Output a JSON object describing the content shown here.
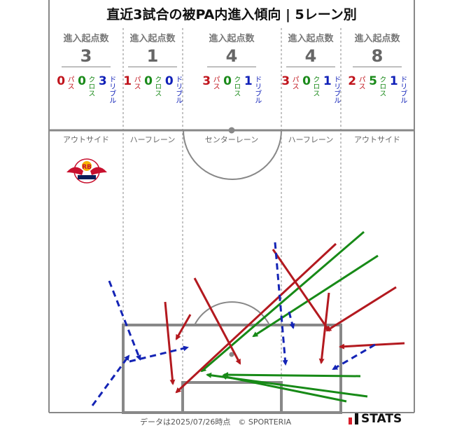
{
  "title": "直近3試合の被PA内進入傾向 | 5レーン別",
  "count_label": "進入起点数",
  "type_labels": {
    "pass": "パス",
    "cross": "クロス",
    "dribble": "ドリブル"
  },
  "colors": {
    "pass": "#b3191f",
    "cross": "#178a17",
    "dribble": "#1424b5",
    "pitch_line": "#888888"
  },
  "lanes": [
    {
      "name": "アウトサイド",
      "total": "3",
      "pass": "0",
      "cross": "0",
      "dribble": "3"
    },
    {
      "name": "ハーフレーン",
      "total": "1",
      "pass": "1",
      "cross": "0",
      "dribble": "0"
    },
    {
      "name": "センターレーン",
      "total": "4",
      "pass": "3",
      "cross": "0",
      "dribble": "1"
    },
    {
      "name": "ハーフレーン",
      "total": "4",
      "pass": "3",
      "cross": "0",
      "dribble": "1"
    },
    {
      "name": "アウトサイド",
      "total": "8",
      "pass": "2",
      "cross": "5",
      "dribble": "1"
    }
  ],
  "team_logo": {
    "icon": "rb-bulls-crest",
    "text": "RB"
  },
  "footer": "データは2025/07/26時点　© SPORTERIA",
  "brand": "STATS"
}
